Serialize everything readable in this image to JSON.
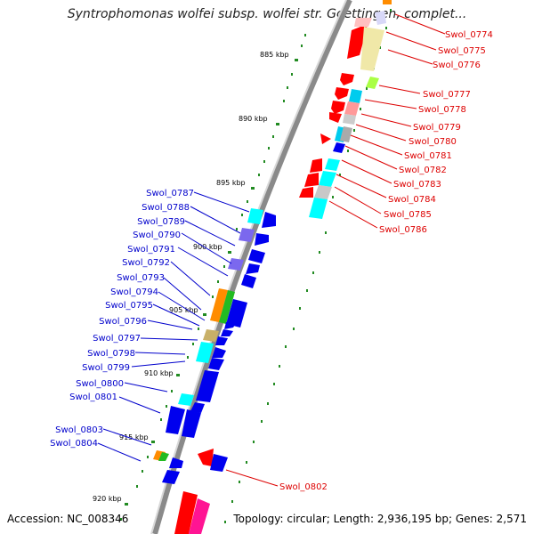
{
  "title": "Syntrophomonas wolfei subsp. wolfei str. Goettingen, complet...",
  "footer": {
    "accession": "Accession: NC_008346",
    "summary": "Topology: circular; Length: 2,936,195 bp; Genes: 2,571"
  },
  "kbp_ticks": [
    "885 kbp",
    "890 kbp",
    "895 kbp",
    "900 kbp",
    "905 kbp",
    "910 kbp",
    "915 kbp",
    "920 kbp"
  ],
  "genes_right": [
    "Swol_0774",
    "Swol_0775",
    "Swol_0776",
    "Swol_0777",
    "Swol_0778",
    "Swol_0779",
    "Swol_0780",
    "Swol_0781",
    "Swol_0782",
    "Swol_0783",
    "Swol_0784",
    "Swol_0785",
    "Swol_0786",
    "Swol_0802"
  ],
  "genes_left": [
    "Swol_0787",
    "Swol_0788",
    "Swol_0789",
    "Swol_0790",
    "Swol_0791",
    "Swol_0792",
    "Swol_0793",
    "Swol_0794",
    "Swol_0795",
    "Swol_0796",
    "Swol_0797",
    "Swol_0798",
    "Swol_0799",
    "Swol_0800",
    "Swol_0801",
    "Swol_0803",
    "Swol_0804"
  ],
  "colors": {
    "forward_label": "#dd0000",
    "reverse_label": "#0000cc",
    "red_gene": "#ff0000",
    "blue_gene": "#0000ee",
    "cyan_gene": "#00eeee",
    "backbone": "#777777",
    "tick_green": "#228b22"
  }
}
